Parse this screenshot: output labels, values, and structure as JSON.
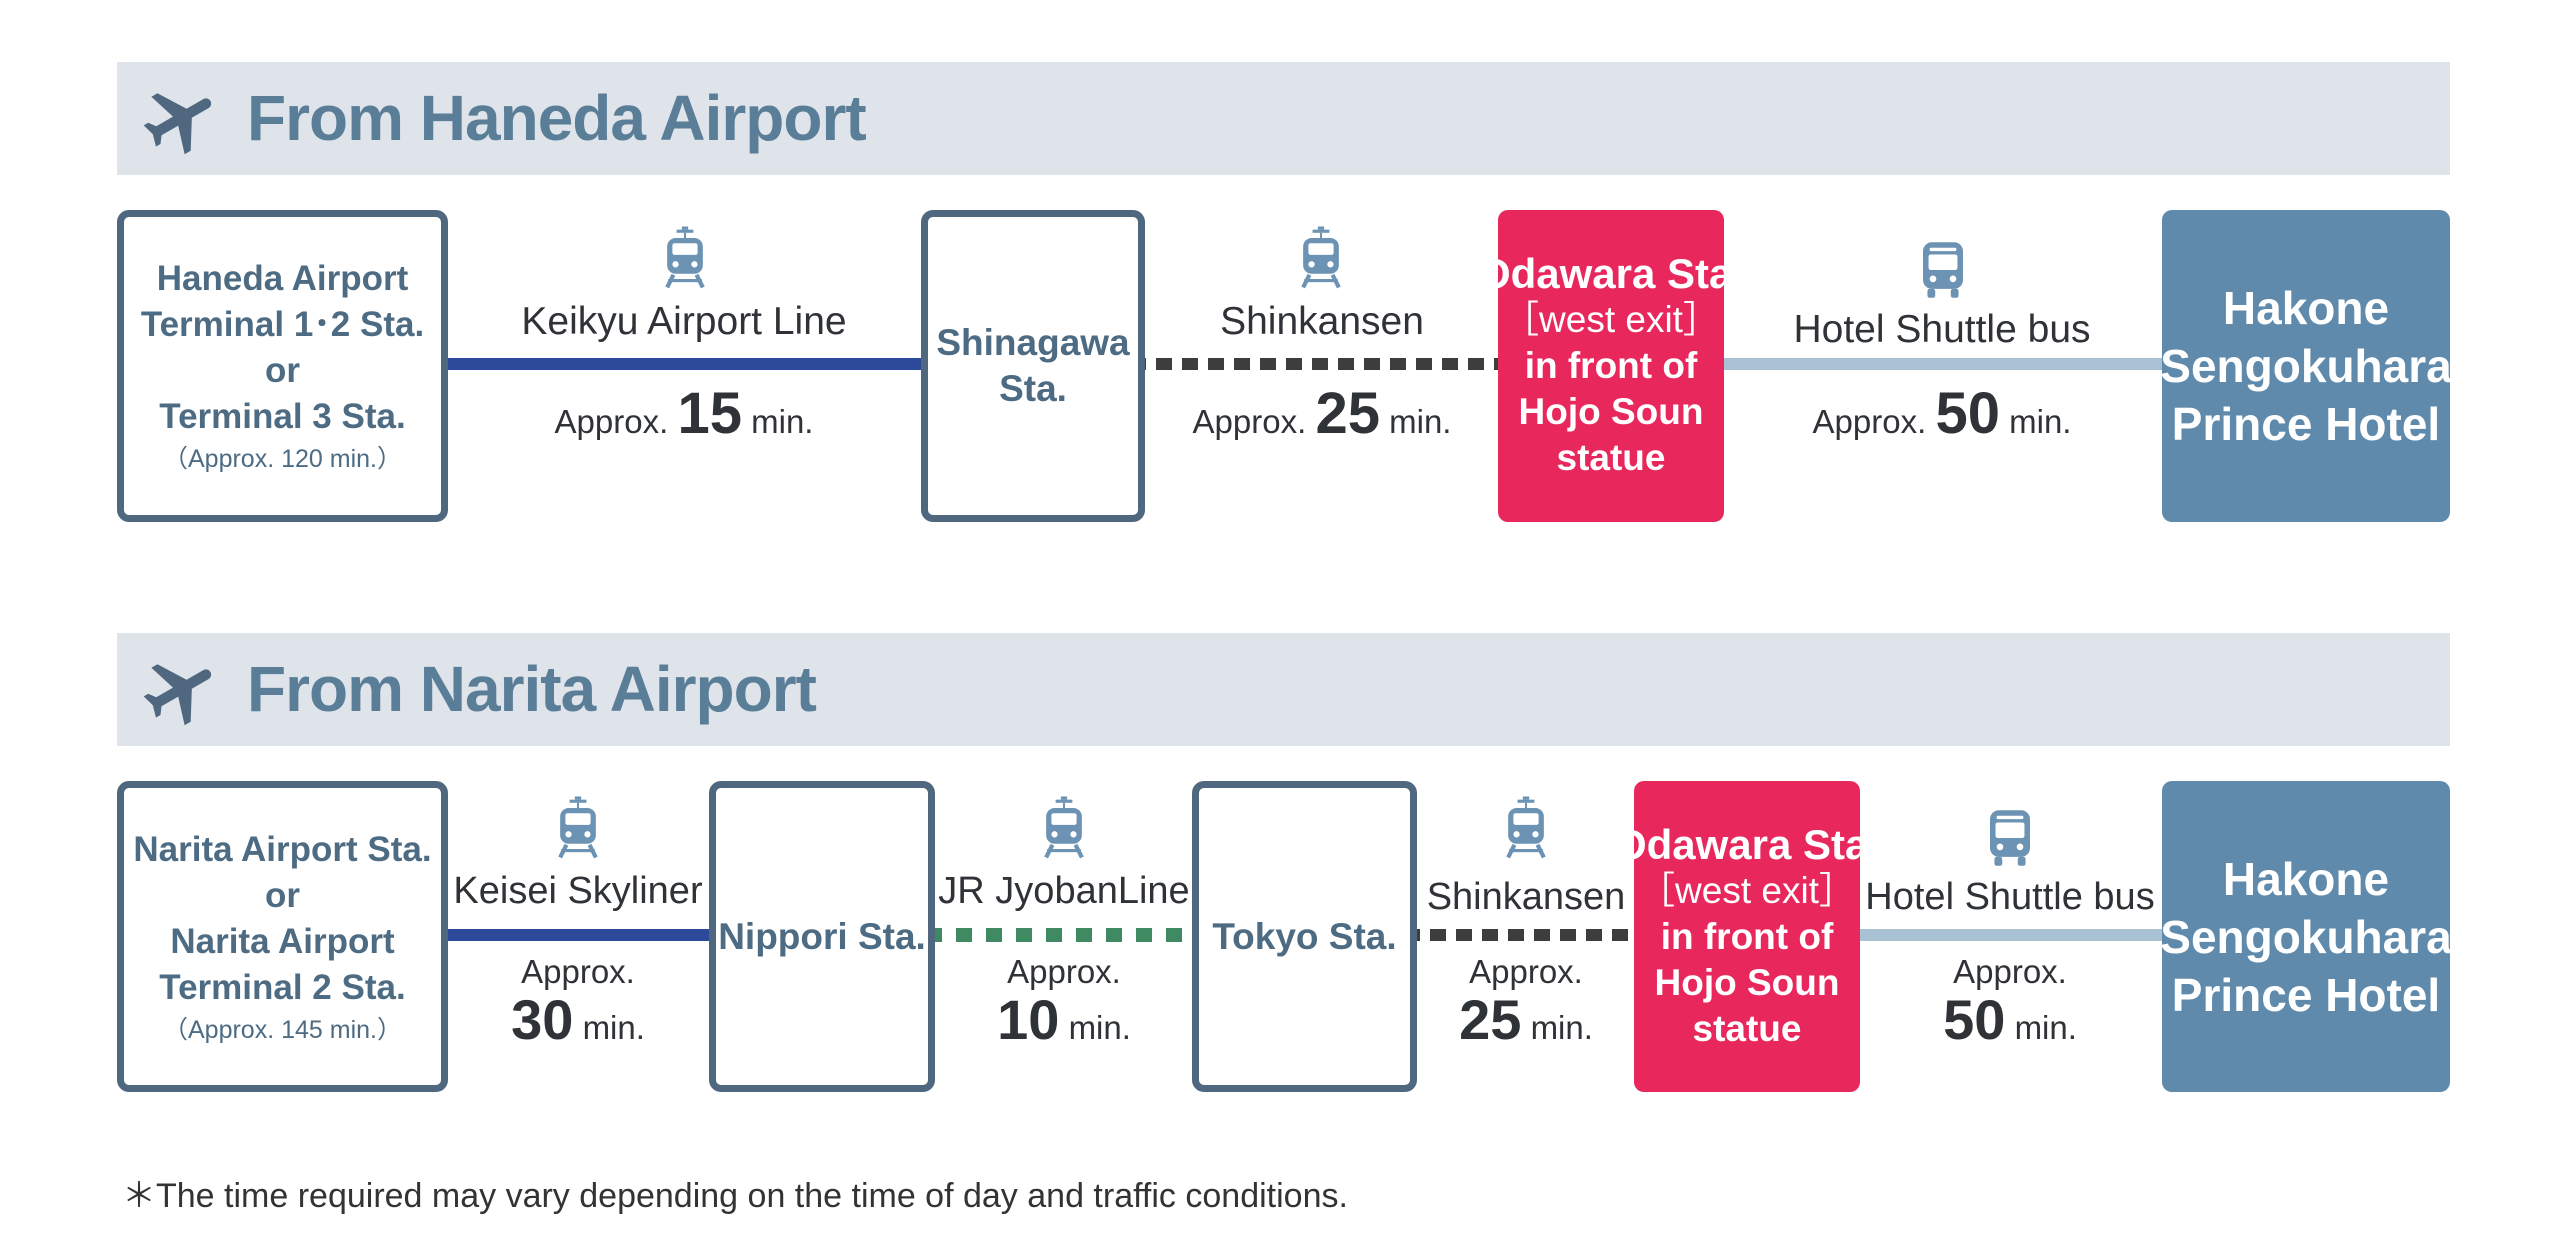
{
  "haneda": {
    "title": "From Haneda Airport",
    "origin": {
      "line1": "Haneda Airport",
      "line2": "Terminal 1･2 Sta.",
      "line3": "or",
      "line4": "Terminal 3 Sta.",
      "sub": "（Approx. 120 min.）"
    },
    "seg1": {
      "name": "Keikyu Airport Line",
      "approx": "Approx.",
      "time": "15",
      "unit": "min."
    },
    "stop1": {
      "line1": "Shinagawa",
      "line2": "Sta."
    },
    "seg2": {
      "name": "Shinkansen",
      "approx": "Approx.",
      "time": "25",
      "unit": "min."
    },
    "odawara": {
      "line1": "Odawara Sta.",
      "line2": "［west exit］",
      "line3": "in front of",
      "line4": "Hojo Soun",
      "line5": "statue"
    },
    "seg3": {
      "name": "Hotel Shuttle bus",
      "approx": "Approx.",
      "time": "50",
      "unit": "min."
    },
    "hotel": {
      "line1": "Hakone",
      "line2": "Sengokuhara",
      "line3": "Prince Hotel"
    }
  },
  "narita": {
    "title": "From Narita Airport",
    "origin": {
      "line1": "Narita Airport Sta.",
      "line2": "or",
      "line3": "Narita Airport",
      "line4": "Terminal 2 Sta.",
      "sub": "（Approx. 145 min.）"
    },
    "seg1": {
      "name": "Keisei Skyliner",
      "approx": "Approx.",
      "time": "30",
      "unit": "min."
    },
    "stop1": {
      "line1": "Nippori Sta."
    },
    "seg2": {
      "name": "JR JyobanLine",
      "approx": "Approx.",
      "time": "10",
      "unit": "min."
    },
    "stop2": {
      "line1": "Tokyo Sta."
    },
    "seg3": {
      "name": "Shinkansen",
      "approx": "Approx.",
      "time": "25",
      "unit": "min."
    },
    "odawara": {
      "line1": "Odawara Sta.",
      "line2": "［west exit］",
      "line3": "in front of",
      "line4": "Hojo Soun",
      "line5": "statue"
    },
    "seg4": {
      "name": "Hotel Shuttle bus",
      "approx": "Approx.",
      "time": "50",
      "unit": "min."
    },
    "hotel": {
      "line1": "Hakone",
      "line2": "Sengokuhara",
      "line3": "Prince Hotel"
    }
  },
  "note": "＊The time required may vary depending on the time of day and traffic conditions.",
  "icons": {
    "header": "airplane-icon",
    "rail": "train-icon",
    "bus": "bus-icon"
  },
  "colors": {
    "header_bg": "#dfe4ea",
    "header_text": "#5b7e98",
    "outline": "#4f6880",
    "odawara": "#e8285c",
    "hotel": "#5f8aab",
    "keikyu": "#2d4a9a",
    "shinkansen": "#3d3d3d",
    "jr_joban": "#3f8a63",
    "shuttle": "#a9c2d3",
    "icon": "#6c93b3"
  }
}
